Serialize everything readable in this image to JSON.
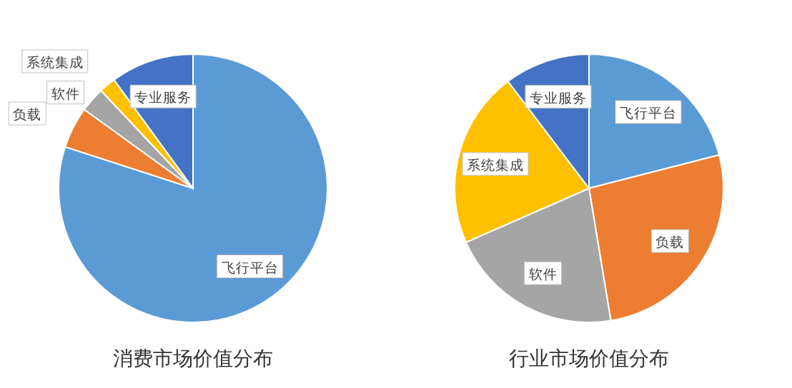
{
  "chart_data": [
    {
      "type": "pie",
      "title": "消费市场价值分布",
      "categories": [
        "飞行平台",
        "负载",
        "软件",
        "系统集成",
        "专业服务"
      ],
      "values": [
        80,
        5,
        3,
        2,
        10
      ],
      "colors": [
        "#5b9bd5",
        "#ed7d31",
        "#a5a5a5",
        "#ffc000",
        "#4472c4"
      ]
    },
    {
      "type": "pie",
      "title": "行业市场价值分布",
      "categories": [
        "飞行平台",
        "负载",
        "软件",
        "系统集成",
        "专业服务"
      ],
      "values": [
        21,
        26.4,
        21,
        21.3,
        10.3
      ],
      "colors": [
        "#5b9bd5",
        "#ed7d31",
        "#a5a5a5",
        "#ffc000",
        "#4472c4"
      ]
    }
  ]
}
